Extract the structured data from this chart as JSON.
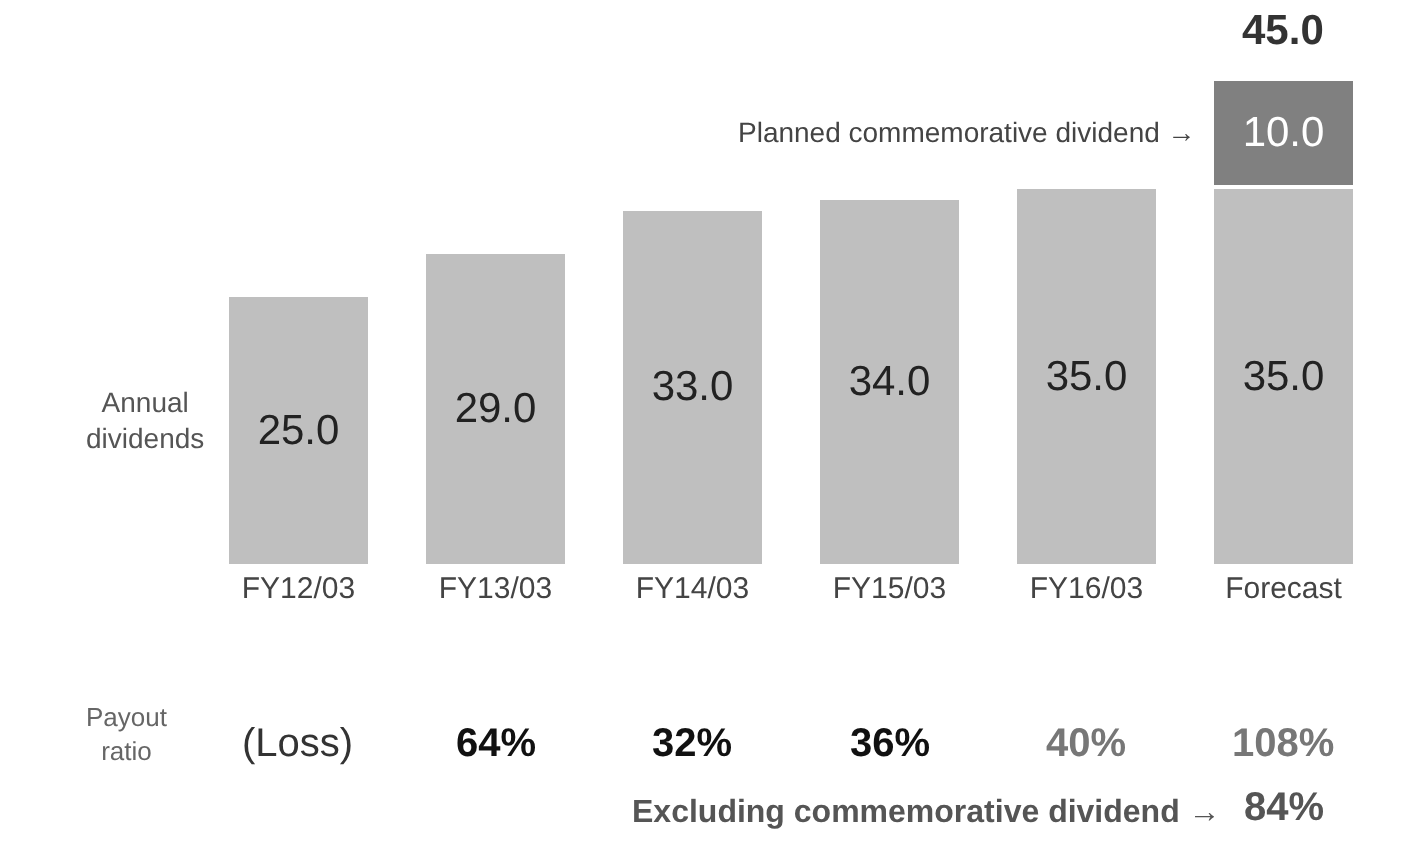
{
  "chart_data": {
    "type": "bar",
    "stacked": true,
    "ylabel": "Annual dividends",
    "categories": [
      "FY12/03",
      "FY13/03",
      "FY14/03",
      "FY15/03",
      "FY16/03",
      "Forecast"
    ],
    "series": [
      {
        "color": "#bfbfbf",
        "values": [
          25,
          29,
          33,
          34,
          35,
          35
        ],
        "value_labels": [
          "25.0",
          "29.0",
          "33.0",
          "34.0",
          "35.0",
          "35.0"
        ]
      },
      {
        "color": "#808080",
        "values": [
          null,
          null,
          null,
          null,
          null,
          10
        ],
        "value_labels": [
          null,
          null,
          null,
          null,
          null,
          "10.0"
        ]
      }
    ],
    "totals": [
      null,
      null,
      null,
      null,
      null,
      "45.0"
    ],
    "annotations": [
      "Planned commemorative dividend →",
      "Payout ratio",
      "(Loss)",
      "64%",
      "32%",
      "36%",
      "40%",
      "108%",
      "Excluding commemorative dividend →",
      "84%"
    ]
  }
}
